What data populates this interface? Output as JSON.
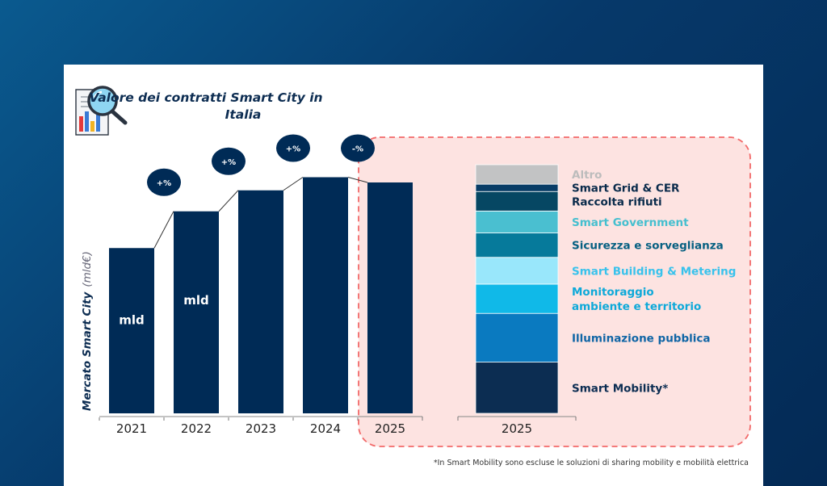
{
  "chart_data": [
    {
      "type": "bar",
      "title_lines": [
        "Valore dei contratti Smart City in",
        "Italia"
      ],
      "ylabel": "Mercato Smart City",
      "ylabel_unit": "(mld€)",
      "categories": [
        "2021",
        "2022",
        "2023",
        "2024",
        "2025"
      ],
      "values": [
        0.63,
        0.77,
        0.85,
        0.9,
        0.88
      ],
      "ylim": [
        0,
        1
      ],
      "bar_labels": [
        "mld",
        "mld",
        "",
        "",
        ""
      ],
      "growth_labels": [
        "+%",
        "+%",
        "+%",
        "-%"
      ],
      "grid": false,
      "bar_color": "#002b56",
      "highlight_category": "2025"
    },
    {
      "type": "bar",
      "stacked": true,
      "categories": [
        "2025"
      ],
      "bar_color": "#0b2d54",
      "series": [
        {
          "name": "Smart Mobility*",
          "values": [
            21
          ],
          "color": "#0c2d52",
          "label_color": "#0c2d52"
        },
        {
          "name": "Illuminazione pubblica",
          "values": [
            20
          ],
          "color": "#0a7ac0",
          "label_color": "#0f65a5"
        },
        {
          "name": "Monitoraggio ambiente e territorio",
          "values": [
            12
          ],
          "color": "#10b9e8",
          "label_color": "#0ea9d9"
        },
        {
          "name": "Smart Building & Metering",
          "values": [
            11
          ],
          "color": "#99e7fb",
          "label_color": "#38c2ec"
        },
        {
          "name": "Sicurezza e sorveglianza",
          "values": [
            10
          ],
          "color": "#067a9b",
          "label_color": "#055f81"
        },
        {
          "name": "Smart Government",
          "values": [
            9
          ],
          "color": "#4abfd0",
          "label_color": "#45bfcf"
        },
        {
          "name": "Raccolta rifiuti",
          "values": [
            8
          ],
          "color": "#064763",
          "label_color": "#0a2b4b"
        },
        {
          "name": "Smart Grid & CER",
          "values": [
            3
          ],
          "color": "#073c66",
          "label_color": "#0a2b4b"
        },
        {
          "name": "Altro",
          "values": [
            8
          ],
          "color": "#c2c3c4",
          "label_color": "#bcbcbc"
        }
      ]
    }
  ],
  "footnote": "*In Smart Mobility sono escluse le soluzioni di sharing mobility e mobilità elettrica",
  "icons": [
    "report-magnifier-icon"
  ],
  "colors": {
    "highlight_fill": "#fde3e1",
    "highlight_border": "#f26a6a",
    "navy": "#002b56"
  }
}
